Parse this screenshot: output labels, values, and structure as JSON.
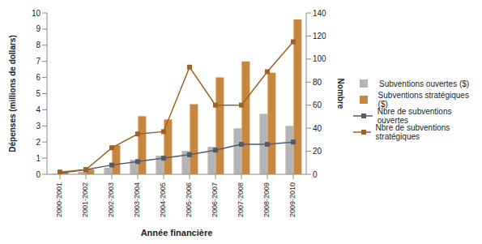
{
  "chart_data": {
    "type": "bar",
    "x_label": "Année financière",
    "y_label": "Dépenses (millions de dollars)",
    "y2_label": "Nombre",
    "categories": [
      "2000-2001",
      "2001-2002",
      "2002-2003",
      "2003-2004",
      "2004-2005",
      "2005-2006",
      "2006-2007",
      "2007-2008",
      "2008-2009",
      "2009-2010"
    ],
    "ylim": [
      0,
      10
    ],
    "yticks": [
      0,
      1,
      2,
      3,
      4,
      5,
      6,
      7,
      8,
      9,
      10
    ],
    "y2lim": [
      0,
      140
    ],
    "y2ticks": [
      0,
      20,
      40,
      60,
      80,
      100,
      120,
      140
    ],
    "grid": false,
    "legend": "right",
    "series": [
      {
        "name": "Subventions ouvertes ($)",
        "type": "bar",
        "color": "#b5b5b5",
        "values": [
          0.05,
          0.15,
          0.4,
          0.9,
          1.15,
          1.45,
          1.7,
          2.85,
          3.75,
          3.0
        ]
      },
      {
        "name": "Subventions stratégiques ($)",
        "type": "bar",
        "color": "#c8873f",
        "values": [
          0.1,
          0.3,
          1.8,
          3.6,
          3.4,
          4.35,
          6.0,
          7.0,
          6.3,
          9.6
        ]
      },
      {
        "name": "Nbre de subventions ouvertes",
        "type": "line",
        "axis": "y2",
        "marker": "square",
        "color": "#555b66",
        "values": [
          1,
          4,
          8,
          11,
          14,
          17,
          21,
          26,
          26,
          28
        ]
      },
      {
        "name": "Nbre de subventions stratégiques",
        "type": "line",
        "axis": "y2",
        "marker": "square",
        "color": "#a0601f",
        "values": [
          2,
          4,
          23,
          35,
          37,
          93,
          60,
          60,
          89,
          115
        ]
      }
    ]
  }
}
